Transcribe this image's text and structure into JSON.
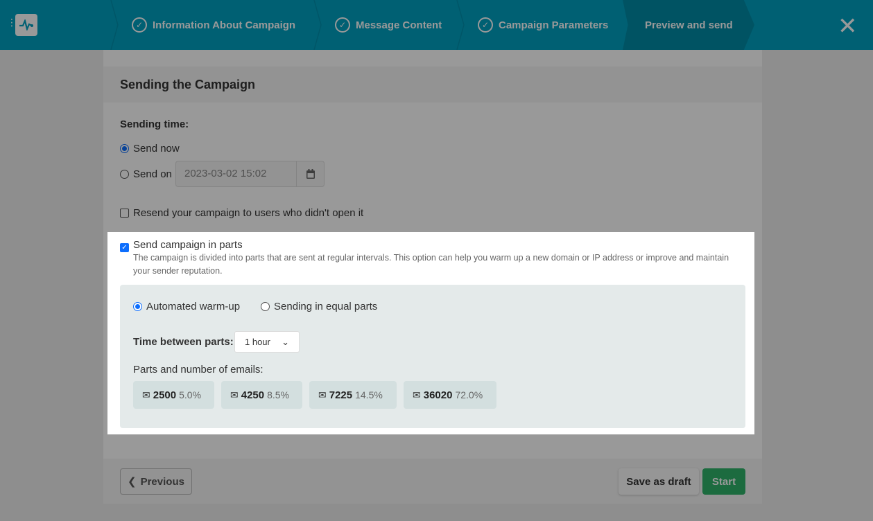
{
  "header": {
    "steps": [
      {
        "label": "Information About Campaign",
        "done": true
      },
      {
        "label": "Message Content",
        "done": true
      },
      {
        "label": "Campaign Parameters",
        "done": true
      },
      {
        "label": "Preview and send",
        "active": true
      }
    ],
    "close_label": "✕"
  },
  "card": {
    "title": "Sending the Campaign",
    "sending_time_label": "Sending time:",
    "send_now_label": "Send now",
    "send_on_label": "Send on",
    "send_on_value": "2023-03-02 15:02",
    "send_now_selected": true,
    "resend_label": "Resend your campaign to users who didn't open it",
    "resend_checked": false
  },
  "parts": {
    "label": "Send campaign in parts",
    "checked": true,
    "description": "The campaign is divided into parts that are sent at regular intervals. This option can help you warm up a new domain or IP address or improve and maintain your sender reputation.",
    "mode_auto": "Automated warm-up",
    "mode_equal": "Sending in equal parts",
    "selected_mode": "Automated warm-up",
    "time_label": "Time between parts:",
    "time_value": "1 hour",
    "counts_label": "Parts and number of emails:",
    "chips": [
      {
        "count": "2500",
        "pct": "5.0%"
      },
      {
        "count": "4250",
        "pct": "8.5%"
      },
      {
        "count": "7225",
        "pct": "14.5%"
      },
      {
        "count": "36020",
        "pct": "72.0%"
      }
    ]
  },
  "footer": {
    "previous": "Previous",
    "save_draft": "Save as draft",
    "start": "Start"
  },
  "colors": {
    "brand": "#00a0c0",
    "start": "#28a745",
    "accent": "#0d6efd"
  }
}
